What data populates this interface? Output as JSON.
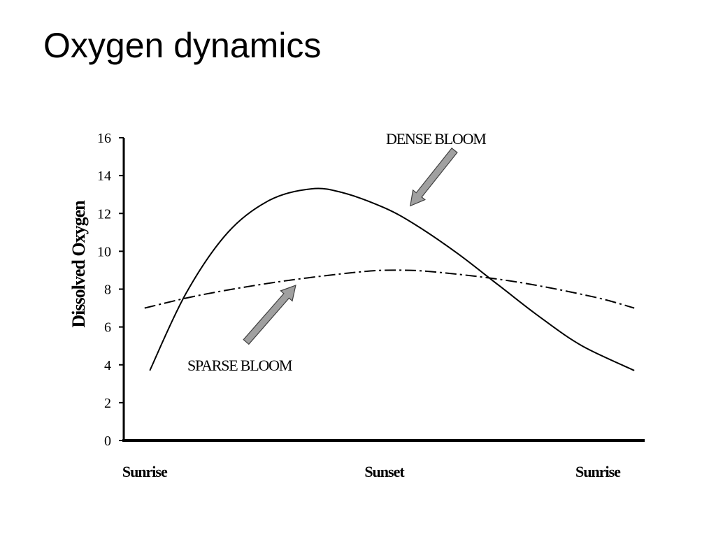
{
  "slide": {
    "title": "Oxygen dynamics"
  },
  "chart_data": {
    "type": "line",
    "ylabel": "Dissolved Oxygen",
    "ylim": [
      0,
      16
    ],
    "yticks": [
      0,
      2,
      4,
      6,
      8,
      10,
      12,
      14,
      16
    ],
    "categories": [
      "Sunrise",
      "Sunset",
      "Sunrise"
    ],
    "xlim": [
      0,
      1
    ],
    "category_positions": [
      0.04,
      0.5,
      0.91
    ],
    "grid": false,
    "series": [
      {
        "name": "DENSE BLOOM",
        "line_style": "solid",
        "color": "#000000",
        "x": [
          0.05,
          0.12,
          0.2,
          0.28,
          0.36,
          0.42,
          0.5,
          0.56,
          0.64,
          0.72,
          0.8,
          0.88,
          0.98
        ],
        "y": [
          3.7,
          7.8,
          11.0,
          12.7,
          13.3,
          13.1,
          12.3,
          11.4,
          9.9,
          8.2,
          6.5,
          5.0,
          3.7
        ]
      },
      {
        "name": "SPARSE BLOOM",
        "line_style": "dash-dot",
        "color": "#000000",
        "x": [
          0.04,
          0.15,
          0.3,
          0.45,
          0.52,
          0.6,
          0.75,
          0.9,
          0.98
        ],
        "y": [
          7.0,
          7.7,
          8.4,
          8.9,
          9.0,
          8.9,
          8.4,
          7.6,
          7.0
        ]
      }
    ],
    "annotations": [
      {
        "text": "DENSE BLOOM",
        "target_series": "DENSE BLOOM",
        "target": [
          0.55,
          12.4
        ],
        "arrow_color": "#a0a0a0"
      },
      {
        "text": "SPARSE BLOOM",
        "target_series": "SPARSE BLOOM",
        "target": [
          0.33,
          8.2
        ],
        "arrow_color": "#a0a0a0"
      }
    ]
  }
}
